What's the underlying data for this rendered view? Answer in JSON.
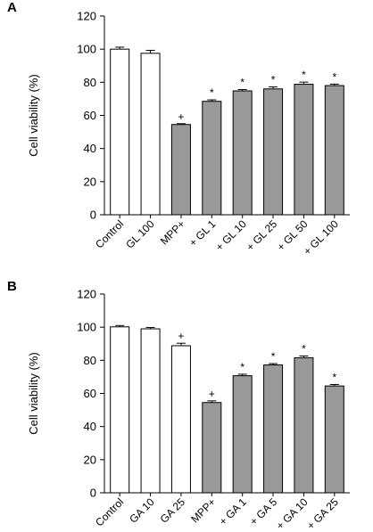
{
  "chart_data": [
    {
      "type": "bar",
      "panel": "A",
      "ylabel": "Cell viability (%)",
      "ylim": [
        0,
        120
      ],
      "yticks": [
        0,
        20,
        40,
        60,
        80,
        100,
        120
      ],
      "categories": [
        "Control",
        "GL 100",
        "MPP+",
        "+ GL 1",
        "+ GL 10",
        "+ GL 25",
        "+ GL 50",
        "+ GL 100"
      ],
      "values": [
        100,
        97.5,
        54.5,
        68.5,
        74.8,
        76.0,
        78.8,
        78.0
      ],
      "errors": [
        1.2,
        1.8,
        0.5,
        0.9,
        0.8,
        1.2,
        1.3,
        0.9
      ],
      "annotations": [
        "",
        "",
        "+",
        "*",
        "*",
        "*",
        "*",
        "*"
      ],
      "bar_colors": [
        "#ffffff",
        "#ffffff",
        "#999999",
        "#999999",
        "#999999",
        "#999999",
        "#999999",
        "#999999"
      ]
    },
    {
      "type": "bar",
      "panel": "B",
      "ylabel": "Cell viability (%)",
      "ylim": [
        0,
        120
      ],
      "yticks": [
        0,
        20,
        40,
        60,
        80,
        100,
        120
      ],
      "categories": [
        "Control",
        "GA 10",
        "GA 25",
        "MPP+",
        "+ GA 1",
        "+ GA 5",
        "+ GA 10",
        "+ GA 25"
      ],
      "values": [
        100.2,
        99.0,
        88.8,
        54.5,
        70.7,
        77.2,
        81.5,
        64.5
      ],
      "errors": [
        0.8,
        0.8,
        1.5,
        1.0,
        0.9,
        0.8,
        1.1,
        0.9
      ],
      "annotations": [
        "",
        "",
        "+",
        "+",
        "*",
        "*",
        "*",
        "*"
      ],
      "bar_colors": [
        "#ffffff",
        "#ffffff",
        "#ffffff",
        "#999999",
        "#999999",
        "#999999",
        "#999999",
        "#999999"
      ]
    }
  ]
}
